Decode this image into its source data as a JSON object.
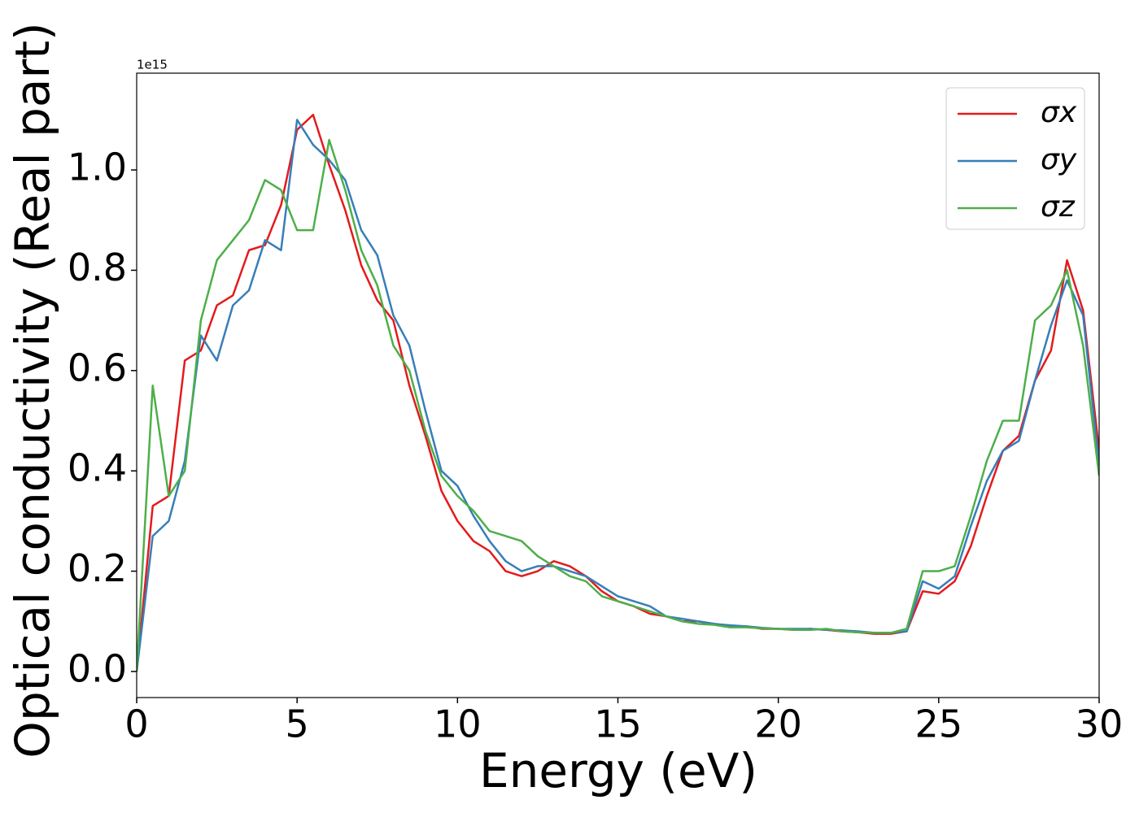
{
  "chart_data": {
    "type": "line",
    "xlabel": "Energy (eV)",
    "ylabel": "Optical conductivity (Real part)",
    "y_offset_label": "1e15",
    "x": [
      0,
      0.5,
      1,
      1.5,
      2,
      2.5,
      3,
      3.5,
      4,
      4.5,
      5,
      5.5,
      6,
      6.5,
      7,
      7.5,
      8,
      8.5,
      9,
      9.5,
      10,
      10.5,
      11,
      11.5,
      12,
      12.5,
      13,
      13.5,
      14,
      14.5,
      15,
      15.5,
      16,
      16.5,
      17,
      17.5,
      18,
      18.5,
      19,
      19.5,
      20,
      20.5,
      21,
      21.5,
      22,
      22.5,
      23,
      23.5,
      24,
      24.5,
      25,
      25.5,
      26,
      26.5,
      27,
      27.5,
      28,
      28.5,
      29,
      29.5,
      30
    ],
    "series": [
      {
        "name": "σx",
        "color": "#e41a1c",
        "values": [
          0,
          0.33,
          0.35,
          0.62,
          0.64,
          0.73,
          0.75,
          0.84,
          0.85,
          0.93,
          1.08,
          1.11,
          1.01,
          0.92,
          0.81,
          0.74,
          0.7,
          0.57,
          0.47,
          0.36,
          0.3,
          0.26,
          0.24,
          0.2,
          0.19,
          0.2,
          0.22,
          0.21,
          0.19,
          0.16,
          0.14,
          0.13,
          0.115,
          0.11,
          0.1,
          0.1,
          0.095,
          0.09,
          0.09,
          0.085,
          0.085,
          0.083,
          0.085,
          0.083,
          0.08,
          0.078,
          0.075,
          0.075,
          0.08,
          0.16,
          0.155,
          0.18,
          0.25,
          0.35,
          0.44,
          0.47,
          0.58,
          0.64,
          0.82,
          0.72,
          0.44
        ]
      },
      {
        "name": "σy",
        "color": "#377eb8",
        "values": [
          0,
          0.27,
          0.3,
          0.42,
          0.67,
          0.62,
          0.73,
          0.76,
          0.86,
          0.84,
          1.1,
          1.05,
          1.02,
          0.98,
          0.88,
          0.83,
          0.71,
          0.65,
          0.52,
          0.4,
          0.37,
          0.31,
          0.26,
          0.22,
          0.2,
          0.21,
          0.21,
          0.2,
          0.19,
          0.17,
          0.15,
          0.14,
          0.13,
          0.11,
          0.105,
          0.1,
          0.095,
          0.092,
          0.09,
          0.087,
          0.085,
          0.085,
          0.085,
          0.083,
          0.082,
          0.08,
          0.077,
          0.077,
          0.08,
          0.18,
          0.165,
          0.19,
          0.29,
          0.38,
          0.44,
          0.46,
          0.58,
          0.69,
          0.78,
          0.71,
          0.41
        ]
      },
      {
        "name": "σz",
        "color": "#4daf4a",
        "values": [
          0,
          0.57,
          0.35,
          0.4,
          0.7,
          0.82,
          0.86,
          0.9,
          0.98,
          0.96,
          0.88,
          0.88,
          1.06,
          0.96,
          0.84,
          0.77,
          0.65,
          0.6,
          0.48,
          0.39,
          0.35,
          0.32,
          0.28,
          0.27,
          0.26,
          0.23,
          0.21,
          0.19,
          0.18,
          0.15,
          0.14,
          0.13,
          0.12,
          0.11,
          0.1,
          0.095,
          0.093,
          0.088,
          0.088,
          0.086,
          0.085,
          0.083,
          0.083,
          0.085,
          0.08,
          0.078,
          0.077,
          0.077,
          0.085,
          0.2,
          0.2,
          0.21,
          0.31,
          0.42,
          0.5,
          0.5,
          0.7,
          0.73,
          0.8,
          0.65,
          0.39
        ]
      }
    ],
    "xlim": [
      0,
      30
    ],
    "xticks": [
      0,
      5,
      10,
      15,
      20,
      25,
      30
    ],
    "ylim": [
      -0.052,
      1.193
    ],
    "yticks": [
      {
        "value": 0,
        "label": "0.0"
      },
      {
        "value": 0.2,
        "label": "0.2"
      },
      {
        "value": 0.4,
        "label": "0.4"
      },
      {
        "value": 0.6,
        "label": "0.6"
      },
      {
        "value": 0.8,
        "label": "0.8"
      },
      {
        "value": 1,
        "label": "1.0"
      }
    ],
    "legend": "upper right"
  }
}
